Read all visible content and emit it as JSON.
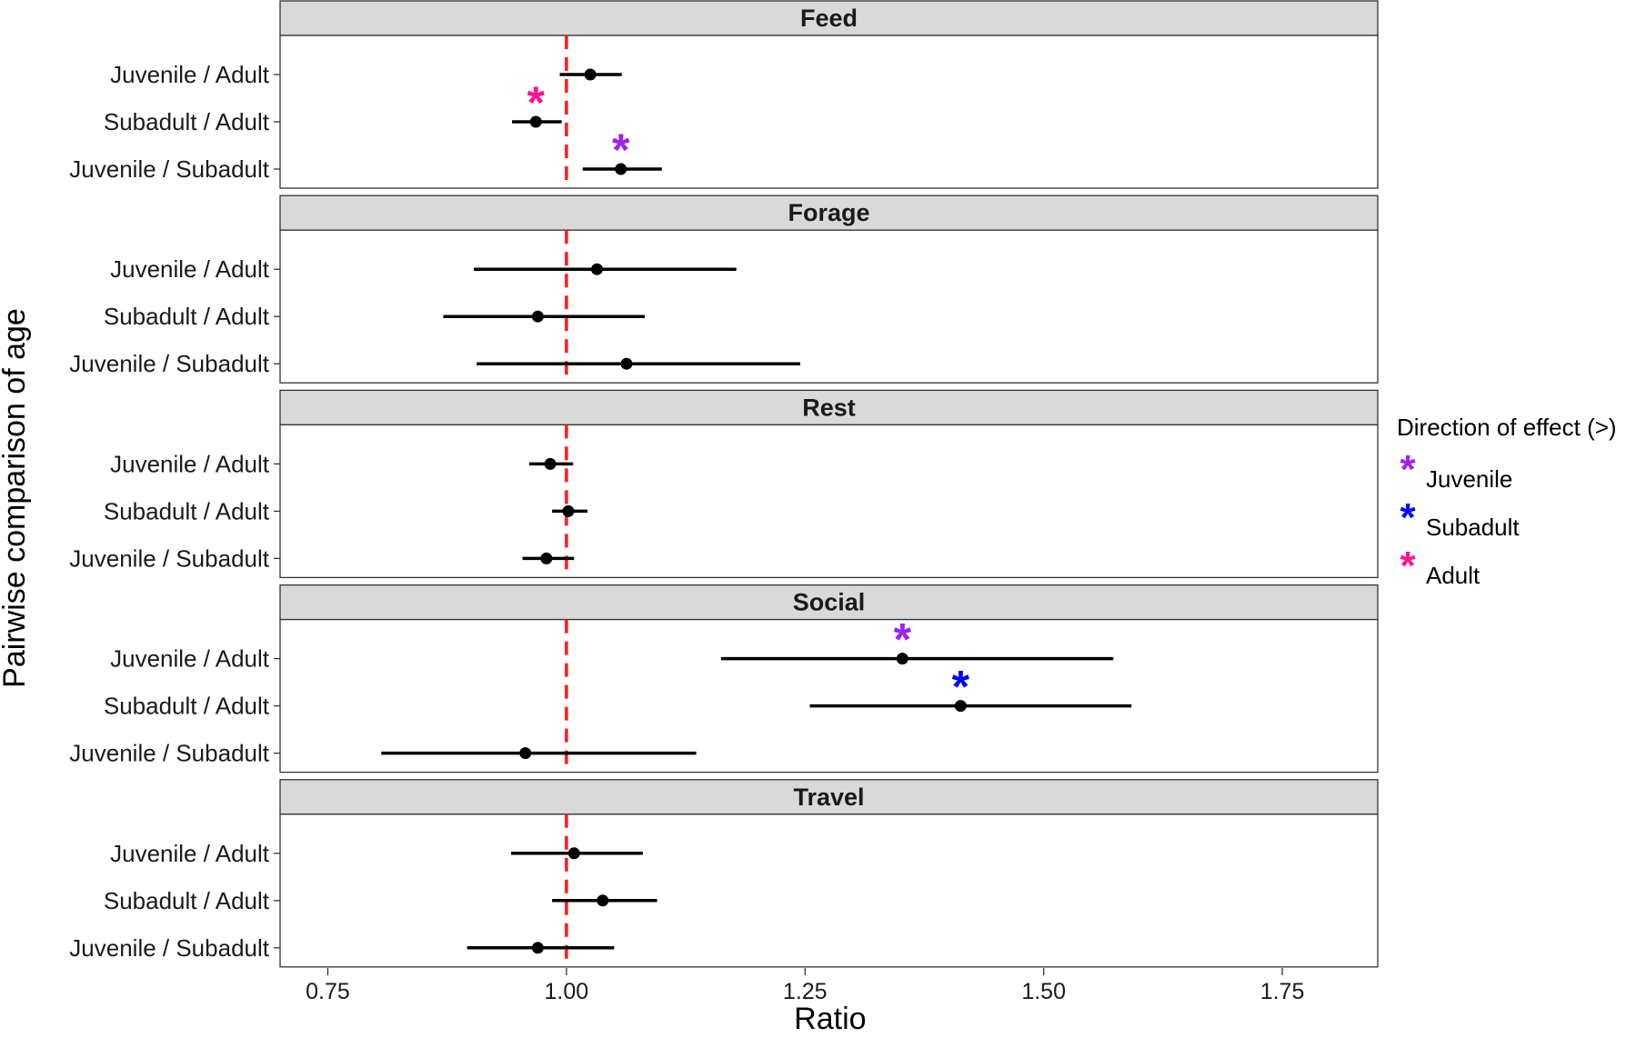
{
  "chart_data": {
    "type": "forest",
    "xlabel": "Ratio",
    "ylabel": "Pairwise comparison of age",
    "xlim": [
      0.7,
      1.85
    ],
    "xticks": [
      0.75,
      1.0,
      1.25,
      1.5,
      1.75
    ],
    "xtick_labels": [
      "0.75",
      "1.00",
      "1.25",
      "1.50",
      "1.75"
    ],
    "reference_line": {
      "value": 1.0,
      "color": "#ff1a1a",
      "style": "dashed"
    },
    "comparisons": [
      "Juvenile / Adult",
      "Subadult / Adult",
      "Juvenile / Subadult"
    ],
    "legend": {
      "title": "Direction of effect (>)",
      "placement": "right",
      "items": [
        {
          "label": "Juvenile",
          "color": "#a020f0"
        },
        {
          "label": "Subadult",
          "color": "#0000ff"
        },
        {
          "label": "Adult",
          "color": "#ff1493"
        }
      ]
    },
    "panels": [
      {
        "title": "Feed",
        "rows": [
          {
            "label": "Juvenile / Adult",
            "estimate": 1.025,
            "lower": 0.993,
            "upper": 1.058,
            "sig": null
          },
          {
            "label": "Subadult / Adult",
            "estimate": 0.968,
            "lower": 0.943,
            "upper": 0.995,
            "sig": "Adult"
          },
          {
            "label": "Juvenile / Subadult",
            "estimate": 1.057,
            "lower": 1.017,
            "upper": 1.1,
            "sig": "Juvenile"
          }
        ]
      },
      {
        "title": "Forage",
        "rows": [
          {
            "label": "Juvenile / Adult",
            "estimate": 1.032,
            "lower": 0.903,
            "upper": 1.178,
            "sig": null
          },
          {
            "label": "Subadult / Adult",
            "estimate": 0.97,
            "lower": 0.871,
            "upper": 1.082,
            "sig": null
          },
          {
            "label": "Juvenile / Subadult",
            "estimate": 1.063,
            "lower": 0.906,
            "upper": 1.245,
            "sig": null
          }
        ]
      },
      {
        "title": "Rest",
        "rows": [
          {
            "label": "Juvenile / Adult",
            "estimate": 0.983,
            "lower": 0.961,
            "upper": 1.007,
            "sig": null
          },
          {
            "label": "Subadult / Adult",
            "estimate": 1.002,
            "lower": 0.985,
            "upper": 1.022,
            "sig": null
          },
          {
            "label": "Juvenile / Subadult",
            "estimate": 0.979,
            "lower": 0.954,
            "upper": 1.008,
            "sig": null
          }
        ]
      },
      {
        "title": "Social",
        "rows": [
          {
            "label": "Juvenile / Adult",
            "estimate": 1.352,
            "lower": 1.162,
            "upper": 1.573,
            "sig": "Juvenile"
          },
          {
            "label": "Subadult / Adult",
            "estimate": 1.413,
            "lower": 1.255,
            "upper": 1.592,
            "sig": "Subadult"
          },
          {
            "label": "Juvenile / Subadult",
            "estimate": 0.957,
            "lower": 0.806,
            "upper": 1.136,
            "sig": null
          }
        ]
      },
      {
        "title": "Travel",
        "rows": [
          {
            "label": "Juvenile / Adult",
            "estimate": 1.008,
            "lower": 0.942,
            "upper": 1.08,
            "sig": null
          },
          {
            "label": "Subadult / Adult",
            "estimate": 1.038,
            "lower": 0.985,
            "upper": 1.095,
            "sig": null
          },
          {
            "label": "Juvenile / Subadult",
            "estimate": 0.97,
            "lower": 0.896,
            "upper": 1.05,
            "sig": null
          }
        ]
      }
    ]
  }
}
